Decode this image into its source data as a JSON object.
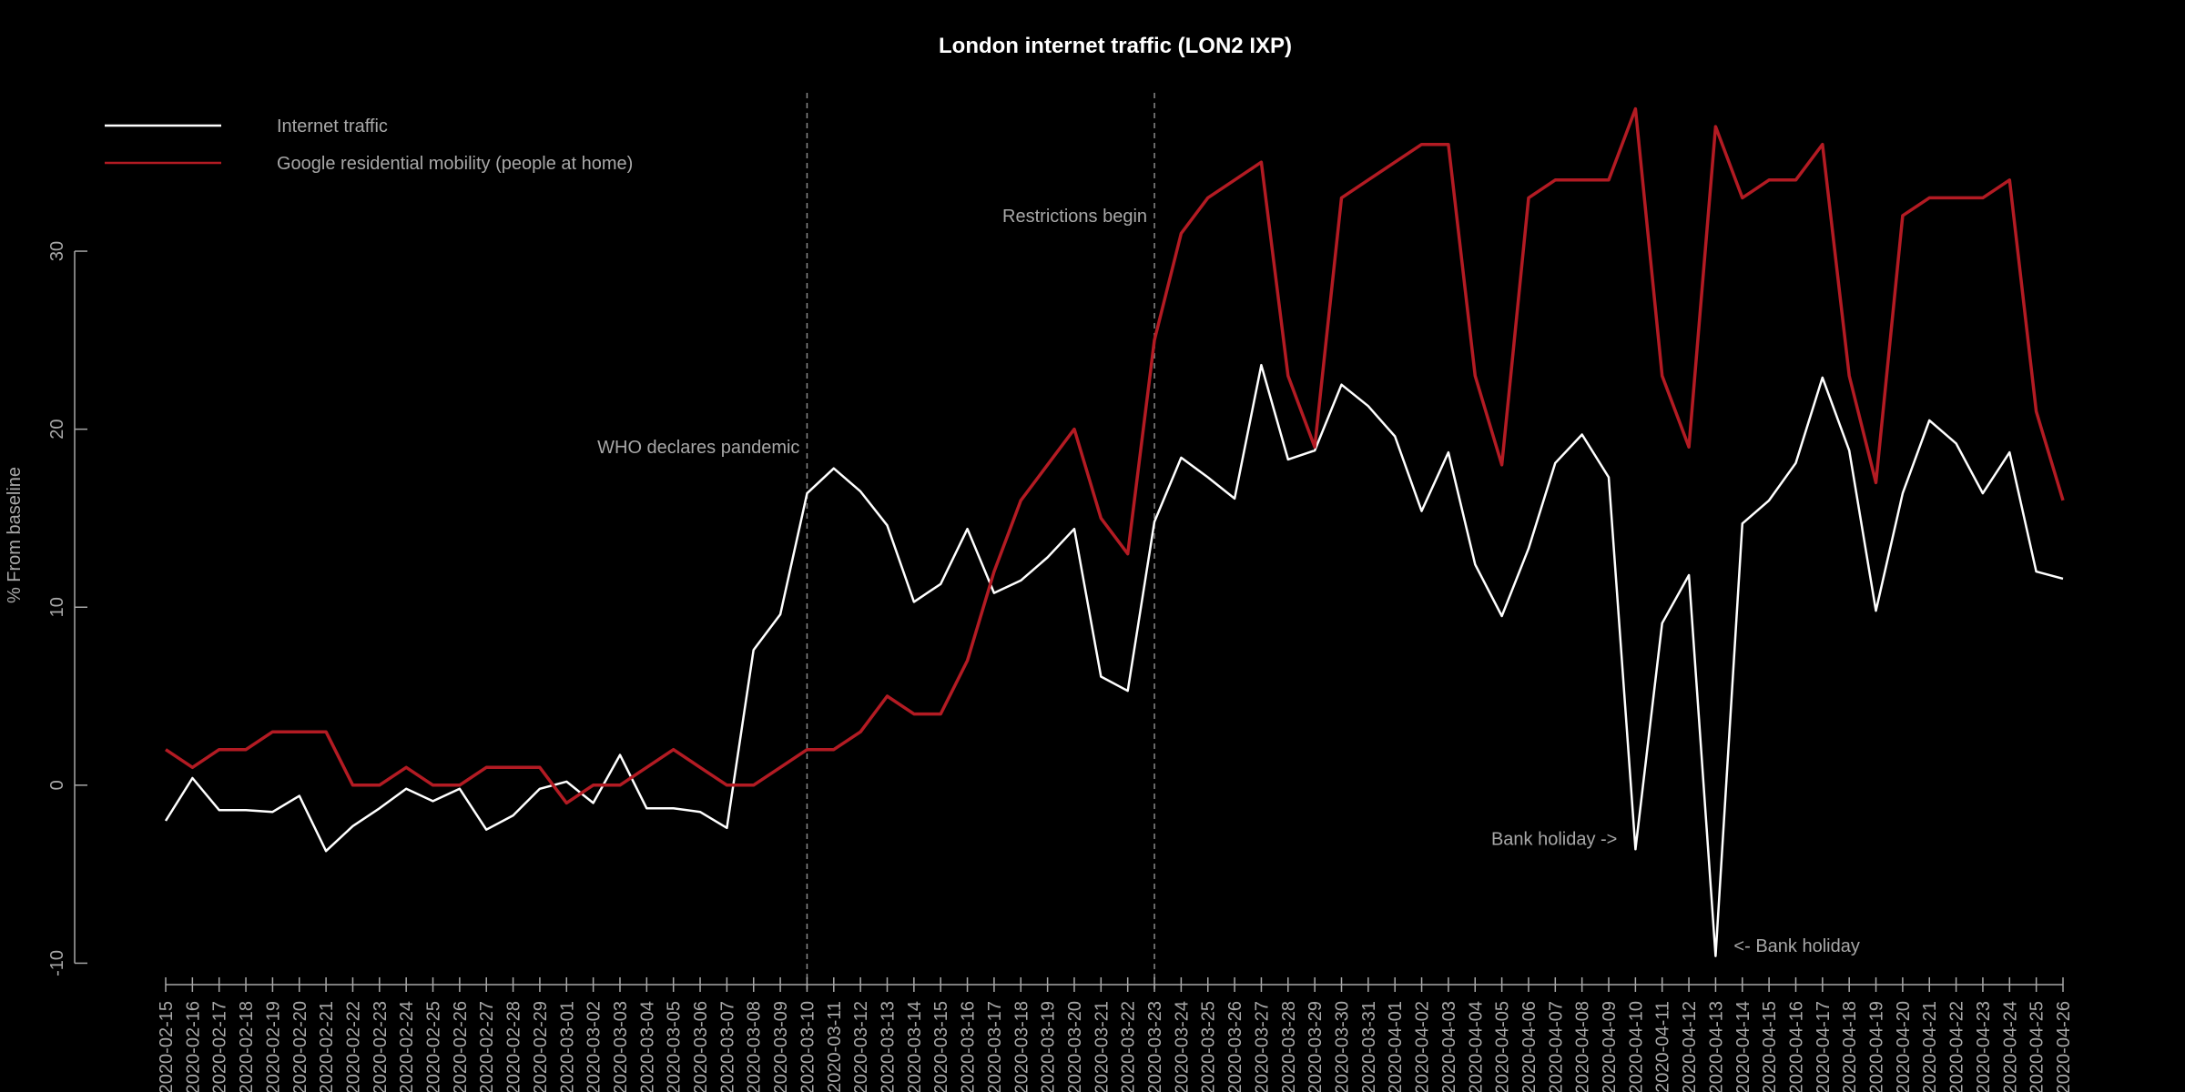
{
  "chart_data": {
    "type": "line",
    "title": "London internet traffic (LON2 IXP)",
    "xlabel": "",
    "ylabel": "% From baseline",
    "ylim": [
      -11,
      39
    ],
    "y_ticks": [
      -10,
      0,
      10,
      20,
      30
    ],
    "grid": false,
    "legend": "top-left",
    "background": "#000000",
    "x": [
      "2020-02-15",
      "2020-02-16",
      "2020-02-17",
      "2020-02-18",
      "2020-02-19",
      "2020-02-20",
      "2020-02-21",
      "2020-02-22",
      "2020-02-23",
      "2020-02-24",
      "2020-02-25",
      "2020-02-26",
      "2020-02-27",
      "2020-02-28",
      "2020-02-29",
      "2020-03-01",
      "2020-03-02",
      "2020-03-03",
      "2020-03-04",
      "2020-03-05",
      "2020-03-06",
      "2020-03-07",
      "2020-03-08",
      "2020-03-09",
      "2020-03-10",
      "2020-03-11",
      "2020-03-12",
      "2020-03-13",
      "2020-03-14",
      "2020-03-15",
      "2020-03-16",
      "2020-03-17",
      "2020-03-18",
      "2020-03-19",
      "2020-03-20",
      "2020-03-21",
      "2020-03-22",
      "2020-03-23",
      "2020-03-24",
      "2020-03-25",
      "2020-03-26",
      "2020-03-27",
      "2020-03-28",
      "2020-03-29",
      "2020-03-30",
      "2020-03-31",
      "2020-04-01",
      "2020-04-02",
      "2020-04-03",
      "2020-04-04",
      "2020-04-05",
      "2020-04-06",
      "2020-04-07",
      "2020-04-08",
      "2020-04-09",
      "2020-04-10",
      "2020-04-11",
      "2020-04-12",
      "2020-04-13",
      "2020-04-14",
      "2020-04-15",
      "2020-04-16",
      "2020-04-17",
      "2020-04-18",
      "2020-04-19",
      "2020-04-20",
      "2020-04-21",
      "2020-04-22",
      "2020-04-23",
      "2020-04-24",
      "2020-04-25",
      "2020-04-26"
    ],
    "series": [
      {
        "name": "Internet traffic",
        "color": "#ffffff",
        "values": [
          -2.0,
          0.4,
          -1.4,
          -1.4,
          -1.5,
          -0.6,
          -3.7,
          -2.3,
          -1.3,
          -0.2,
          -0.9,
          -0.2,
          -2.5,
          -1.7,
          -0.2,
          0.2,
          -1.0,
          1.7,
          -1.3,
          -1.3,
          -1.5,
          -2.4,
          7.6,
          9.6,
          16.4,
          17.8,
          16.5,
          14.6,
          10.3,
          11.3,
          14.4,
          10.8,
          11.5,
          12.8,
          14.4,
          6.1,
          5.3,
          14.8,
          18.4,
          17.3,
          16.1,
          23.6,
          18.3,
          18.8,
          22.5,
          21.3,
          19.6,
          15.4,
          18.7,
          12.4,
          9.5,
          13.3,
          18.1,
          19.7,
          17.3,
          -3.6,
          9.1,
          11.8,
          -9.6,
          14.7,
          16.0,
          18.1,
          22.9,
          18.8,
          9.8,
          16.4,
          20.5,
          19.2,
          16.4,
          18.7,
          12.0,
          11.6
        ]
      },
      {
        "name": "Google residential mobility (people at home)",
        "color": "#b31b23",
        "values": [
          2,
          1,
          2,
          2,
          3,
          3,
          3,
          0,
          0,
          1,
          0,
          0,
          1,
          1,
          1,
          -1,
          0,
          0,
          1,
          2,
          1,
          0,
          0,
          1,
          2,
          2,
          3,
          5,
          4,
          4,
          7,
          12,
          16,
          18,
          20,
          15,
          13,
          25,
          31,
          33,
          34,
          35,
          23,
          19,
          33,
          34,
          35,
          36,
          36,
          23,
          18,
          33,
          34,
          34,
          34,
          38,
          23,
          19,
          37,
          33,
          34,
          34,
          36,
          23,
          17,
          32,
          33,
          33,
          33,
          34,
          21,
          16
        ]
      }
    ],
    "vlines": [
      "2020-03-10",
      "2020-03-23"
    ],
    "annotations": [
      {
        "text": "WHO declares pandemic",
        "x": "2020-03-10",
        "y": 19,
        "anchor": "end"
      },
      {
        "text": "Restrictions begin",
        "x": "2020-03-23",
        "y": 32,
        "anchor": "end"
      },
      {
        "text": "Bank holiday ->",
        "x": "2020-04-10",
        "y": -3,
        "anchor": "end"
      },
      {
        "text": "<- Bank holiday",
        "x": "2020-04-13",
        "y": -9,
        "anchor": "start"
      }
    ]
  }
}
